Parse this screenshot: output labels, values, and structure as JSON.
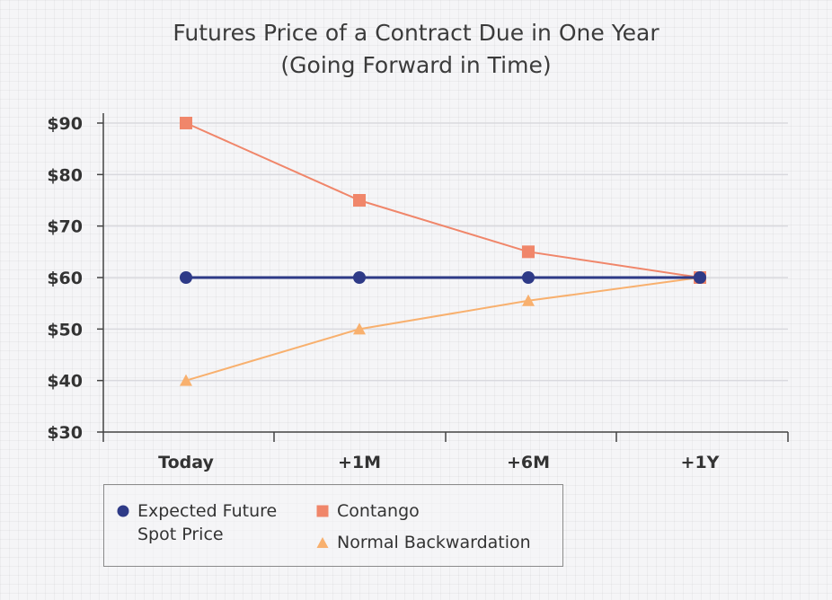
{
  "chart_data": {
    "type": "line",
    "title_line1": "Futures Price of a Contract Due in One Year",
    "title_line2": "(Going Forward in Time)",
    "categories": [
      "Today",
      "+1M",
      "+6M",
      "+1Y"
    ],
    "ylim": [
      30,
      90
    ],
    "yticks": [
      30,
      40,
      50,
      60,
      70,
      80,
      90
    ],
    "ytick_labels": [
      "$30",
      "$40",
      "$50",
      "$60",
      "$70",
      "$80",
      "$90"
    ],
    "grid": true,
    "legend_position": "bottom-left",
    "series": [
      {
        "name": "Expected Future\nSpot Price",
        "marker": "circle",
        "color": "#2e3a87",
        "values": [
          60,
          60,
          60,
          60
        ]
      },
      {
        "name": "Contango",
        "marker": "square",
        "color": "#f0866a",
        "values": [
          90,
          75,
          65,
          60
        ]
      },
      {
        "name": "Normal Backwardation",
        "marker": "triangle",
        "color": "#f8b06e",
        "values": [
          40,
          50,
          55.5,
          60
        ]
      }
    ]
  }
}
